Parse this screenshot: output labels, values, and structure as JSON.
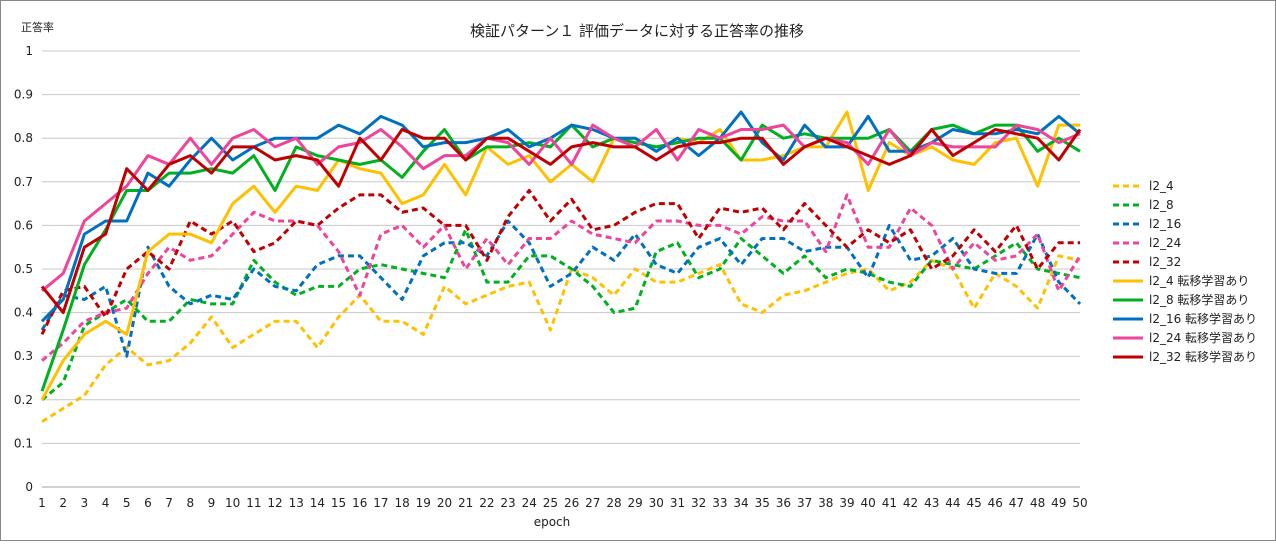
{
  "chart_data": {
    "type": "line",
    "title": "検証パターン１ 評価データに対する正答率の推移",
    "xlabel": "epoch",
    "ylabel": "正答率",
    "ylim": [
      0,
      1
    ],
    "yticks": [
      "0",
      "0.1",
      "0.2",
      "0.3",
      "0.4",
      "0.5",
      "0.6",
      "0.7",
      "0.8",
      "0.9",
      "1"
    ],
    "x": [
      1,
      2,
      3,
      4,
      5,
      6,
      7,
      8,
      9,
      10,
      11,
      12,
      13,
      14,
      15,
      16,
      17,
      18,
      19,
      20,
      21,
      22,
      23,
      24,
      25,
      26,
      27,
      28,
      29,
      30,
      31,
      32,
      33,
      34,
      35,
      36,
      37,
      38,
      39,
      40,
      41,
      42,
      43,
      44,
      45,
      46,
      47,
      48,
      49,
      50
    ],
    "grid": "horizontal",
    "legend_position": "right",
    "series": [
      {
        "name": "l2_4",
        "color": "#ffc000",
        "dashed": true,
        "values": [
          0.15,
          0.18,
          0.21,
          0.28,
          0.32,
          0.28,
          0.29,
          0.33,
          0.39,
          0.32,
          0.35,
          0.38,
          0.38,
          0.32,
          0.39,
          0.44,
          0.38,
          0.38,
          0.35,
          0.46,
          0.42,
          0.44,
          0.46,
          0.47,
          0.36,
          0.5,
          0.48,
          0.44,
          0.5,
          0.47,
          0.47,
          0.49,
          0.51,
          0.42,
          0.4,
          0.44,
          0.45,
          0.47,
          0.49,
          0.5,
          0.45,
          0.47,
          0.52,
          0.5,
          0.41,
          0.49,
          0.46,
          0.41,
          0.53,
          0.52
        ]
      },
      {
        "name": "l2_8",
        "color": "#00b020",
        "dashed": true,
        "values": [
          0.2,
          0.24,
          0.37,
          0.4,
          0.43,
          0.38,
          0.38,
          0.43,
          0.42,
          0.42,
          0.52,
          0.47,
          0.44,
          0.46,
          0.46,
          0.5,
          0.51,
          0.5,
          0.49,
          0.48,
          0.59,
          0.47,
          0.47,
          0.53,
          0.53,
          0.5,
          0.46,
          0.4,
          0.41,
          0.54,
          0.56,
          0.48,
          0.5,
          0.57,
          0.53,
          0.49,
          0.53,
          0.48,
          0.5,
          0.49,
          0.47,
          0.46,
          0.52,
          0.51,
          0.5,
          0.53,
          0.56,
          0.5,
          0.49,
          0.48
        ]
      },
      {
        "name": "l2_16",
        "color": "#0070c0",
        "dashed": true,
        "values": [
          0.36,
          0.44,
          0.43,
          0.46,
          0.3,
          0.55,
          0.46,
          0.42,
          0.44,
          0.43,
          0.5,
          0.46,
          0.45,
          0.51,
          0.53,
          0.53,
          0.48,
          0.43,
          0.53,
          0.56,
          0.56,
          0.53,
          0.61,
          0.56,
          0.46,
          0.49,
          0.55,
          0.52,
          0.58,
          0.51,
          0.49,
          0.55,
          0.57,
          0.51,
          0.57,
          0.57,
          0.54,
          0.55,
          0.55,
          0.48,
          0.6,
          0.52,
          0.53,
          0.57,
          0.5,
          0.49,
          0.49,
          0.58,
          0.47,
          0.42
        ]
      },
      {
        "name": "l2_24",
        "color": "#ee4499",
        "dashed": true,
        "values": [
          0.29,
          0.33,
          0.38,
          0.4,
          0.41,
          0.49,
          0.55,
          0.52,
          0.53,
          0.58,
          0.63,
          0.61,
          0.61,
          0.6,
          0.54,
          0.44,
          0.58,
          0.6,
          0.55,
          0.6,
          0.5,
          0.57,
          0.51,
          0.57,
          0.57,
          0.61,
          0.58,
          0.57,
          0.56,
          0.61,
          0.61,
          0.6,
          0.6,
          0.58,
          0.62,
          0.61,
          0.61,
          0.54,
          0.67,
          0.55,
          0.55,
          0.64,
          0.6,
          0.5,
          0.56,
          0.52,
          0.53,
          0.58,
          0.45,
          0.53
        ]
      },
      {
        "name": "l2_32",
        "color": "#c00000",
        "dashed": true,
        "values": [
          0.35,
          0.45,
          0.46,
          0.39,
          0.5,
          0.54,
          0.5,
          0.61,
          0.58,
          0.61,
          0.54,
          0.56,
          0.61,
          0.6,
          0.64,
          0.67,
          0.67,
          0.63,
          0.64,
          0.6,
          0.6,
          0.52,
          0.62,
          0.68,
          0.61,
          0.66,
          0.59,
          0.6,
          0.63,
          0.65,
          0.65,
          0.57,
          0.64,
          0.63,
          0.64,
          0.59,
          0.65,
          0.6,
          0.55,
          0.59,
          0.56,
          0.59,
          0.5,
          0.53,
          0.59,
          0.54,
          0.6,
          0.5,
          0.56,
          0.56
        ]
      },
      {
        "name": "l2_4 転移学習あり",
        "color": "#ffc000",
        "dashed": false,
        "values": [
          0.2,
          0.29,
          0.35,
          0.38,
          0.35,
          0.54,
          0.58,
          0.58,
          0.56,
          0.65,
          0.69,
          0.63,
          0.69,
          0.68,
          0.75,
          0.73,
          0.72,
          0.65,
          0.67,
          0.74,
          0.67,
          0.78,
          0.74,
          0.76,
          0.7,
          0.74,
          0.7,
          0.8,
          0.8,
          0.77,
          0.8,
          0.79,
          0.82,
          0.75,
          0.75,
          0.76,
          0.78,
          0.78,
          0.86,
          0.68,
          0.79,
          0.76,
          0.78,
          0.75,
          0.74,
          0.79,
          0.8,
          0.69,
          0.83,
          0.83
        ]
      },
      {
        "name": "l2_8 転移学習あり",
        "color": "#00b020",
        "dashed": false,
        "values": [
          0.22,
          0.36,
          0.51,
          0.59,
          0.68,
          0.68,
          0.72,
          0.72,
          0.73,
          0.72,
          0.76,
          0.68,
          0.78,
          0.76,
          0.75,
          0.74,
          0.75,
          0.71,
          0.77,
          0.82,
          0.75,
          0.78,
          0.78,
          0.79,
          0.78,
          0.83,
          0.78,
          0.8,
          0.79,
          0.78,
          0.79,
          0.8,
          0.8,
          0.75,
          0.83,
          0.8,
          0.81,
          0.8,
          0.8,
          0.8,
          0.82,
          0.77,
          0.82,
          0.83,
          0.81,
          0.83,
          0.83,
          0.77,
          0.8,
          0.77
        ]
      },
      {
        "name": "l2_16 転移学習あり",
        "color": "#0070c0",
        "dashed": false,
        "values": [
          0.38,
          0.43,
          0.58,
          0.61,
          0.61,
          0.72,
          0.69,
          0.75,
          0.8,
          0.75,
          0.78,
          0.8,
          0.8,
          0.8,
          0.83,
          0.81,
          0.85,
          0.83,
          0.78,
          0.79,
          0.79,
          0.8,
          0.82,
          0.78,
          0.8,
          0.83,
          0.82,
          0.8,
          0.8,
          0.77,
          0.8,
          0.76,
          0.8,
          0.86,
          0.79,
          0.75,
          0.83,
          0.78,
          0.78,
          0.85,
          0.77,
          0.77,
          0.79,
          0.82,
          0.81,
          0.81,
          0.82,
          0.81,
          0.85,
          0.81
        ]
      },
      {
        "name": "l2_24 転移学習あり",
        "color": "#ee4499",
        "dashed": false,
        "values": [
          0.45,
          0.49,
          0.61,
          0.65,
          0.69,
          0.76,
          0.74,
          0.8,
          0.74,
          0.8,
          0.82,
          0.78,
          0.8,
          0.74,
          0.78,
          0.79,
          0.82,
          0.78,
          0.73,
          0.76,
          0.76,
          0.8,
          0.79,
          0.74,
          0.8,
          0.74,
          0.83,
          0.8,
          0.78,
          0.82,
          0.75,
          0.82,
          0.8,
          0.82,
          0.82,
          0.83,
          0.78,
          0.8,
          0.79,
          0.74,
          0.82,
          0.76,
          0.79,
          0.78,
          0.78,
          0.78,
          0.83,
          0.82,
          0.79,
          0.81
        ]
      },
      {
        "name": "l2_32 転移学習あり",
        "color": "#c00000",
        "dashed": false,
        "values": [
          0.46,
          0.4,
          0.55,
          0.58,
          0.73,
          0.68,
          0.74,
          0.76,
          0.72,
          0.78,
          0.78,
          0.75,
          0.76,
          0.75,
          0.69,
          0.8,
          0.75,
          0.82,
          0.8,
          0.8,
          0.75,
          0.8,
          0.8,
          0.77,
          0.74,
          0.78,
          0.79,
          0.78,
          0.78,
          0.75,
          0.78,
          0.79,
          0.79,
          0.8,
          0.8,
          0.74,
          0.78,
          0.8,
          0.78,
          0.76,
          0.74,
          0.76,
          0.82,
          0.76,
          0.79,
          0.82,
          0.81,
          0.8,
          0.75,
          0.82
        ]
      }
    ]
  }
}
